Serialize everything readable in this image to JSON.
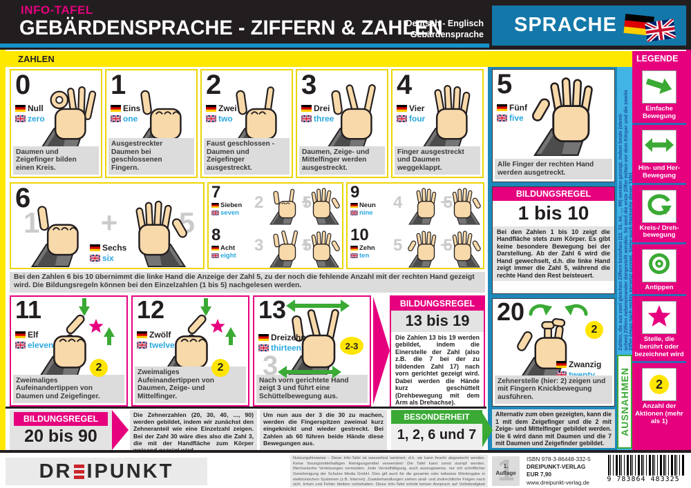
{
  "colors": {
    "magenta": "#E6007E",
    "yellow": "#FFE800",
    "blue_panel": "#1F88BB",
    "sprache_blue": "#1378A9",
    "cyan_strip": "#41B3E5",
    "green": "#3AAA35",
    "english_blue": "#29A7DE",
    "header_dark": "#221E20"
  },
  "header": {
    "tag": "INFO-TAFEL",
    "title": "GEBÄRDENSPRACHE - ZIFFERN & ZAHLEN",
    "lang_line1": "Deutsch - Englisch",
    "lang_line2": "Gebärdensprache",
    "language_panel": "SPRACHE"
  },
  "section": {
    "zahlen": "ZAHLEN"
  },
  "cards": {
    "c0": {
      "digit": "0",
      "de": "Null",
      "en": "zero",
      "caption": "Daumen und Zeigefinger bilden einen Kreis."
    },
    "c1": {
      "digit": "1",
      "de": "Eins",
      "en": "one",
      "caption": "Ausgestreckter Daumen bei geschlossenen Fingern."
    },
    "c2": {
      "digit": "2",
      "de": "Zwei",
      "en": "two",
      "caption": "Faust geschlossen - Daumen und Zeigefinger ausgestreckt."
    },
    "c3": {
      "digit": "3",
      "de": "Drei",
      "en": "three",
      "caption": "Daumen, Zeige- und Mittelfinger werden ausgestreckt."
    },
    "c4": {
      "digit": "4",
      "de": "Vier",
      "en": "four",
      "caption": "Finger ausgestreckt und Daumen weggeklappt."
    },
    "c5": {
      "digit": "5",
      "de": "Fünf",
      "en": "five",
      "caption": "Alle Finger der rechten Hand werden ausgetreckt."
    },
    "c6": {
      "digit": "6",
      "de": "Sechs",
      "en": "six",
      "ghost_a": "1",
      "ghost_plus": "+",
      "ghost_b": "5"
    },
    "c7": {
      "digit": "7",
      "de": "Sieben",
      "en": "seven",
      "ghost_a": "2",
      "ghost_plus": "+",
      "ghost_b": "5"
    },
    "c8": {
      "digit": "8",
      "de": "Acht",
      "en": "eight",
      "ghost_a": "3",
      "ghost_plus": "+",
      "ghost_b": "5"
    },
    "c9": {
      "digit": "9",
      "de": "Neun",
      "en": "nine",
      "ghost_a": "4",
      "ghost_plus": "+",
      "ghost_b": "5"
    },
    "c10": {
      "digit": "10",
      "de": "Zehn",
      "en": "ten",
      "ghost_a": "5",
      "ghost_plus": "+",
      "ghost_b": "5"
    },
    "c11": {
      "digit": "11",
      "de": "Elf",
      "en": "eleven",
      "badge": "2",
      "caption": "Zweimaliges Aufeinandertippen von Daumen und Zeigefinger."
    },
    "c12": {
      "digit": "12",
      "de": "Zwölf",
      "en": "twelve",
      "badge": "2",
      "caption": "Zweimaliges Aufeinandertippen von Daumen, Zeige- und Mittelfinger."
    },
    "c13": {
      "digit": "13",
      "de": "Dreizehn",
      "en": "thirteen",
      "badge": "2-3",
      "ghost": "3",
      "caption": "Nach vorn gerichtete Hand zeigt 3 und führt eine Schüttelbewegung aus."
    },
    "c20": {
      "digit": "20",
      "de": "Zwanzig",
      "en": "twenty",
      "badge": "2",
      "caption": "Zehnerstelle (hier: 2) zeigen und mit Fingern Knickbewegung ausführen."
    }
  },
  "notes": {
    "six_to_ten": "Bei den Zahlen 6 bis 10 übernimmt die linke Hand die Anzeige der Zahl 5, zu der noch die fehlende Anzahl mit der rechten Hand gezeigt wird. Die Bildungsregeln können bei den Einzelzahlen (1 bis 5) nachgelesen werden.",
    "alternative": "Alternativ zum oben gezeigten, kann die 1 mit dem Zeigefinger und die 2 mit Zeige- und Mittelfinger gebildet werden. Die 6 wird dann mit Daumen und die 7 mit Daumen und Zeigefinder gebildet."
  },
  "rules": {
    "r1_10": {
      "header": "BILDUNGSREGEL",
      "title": "1 bis 10",
      "body": "Bei den Zahlen 1 bis 10 zeigt die Handfläche stets zum Körper. Es gibt keine besondere Bewegung bei der Darstellung. Ab der Zahl 6 wird die Hand gewechselt, d.h. die linke Hand zeigt immer die Zahl 5, während die rechte Hand den Rest beisteuert."
    },
    "r13_19": {
      "header": "BILDUNGSREGEL",
      "title": "13 bis 19",
      "body": "Die Zahlen 13 bis 19 werden gebildet, indem die Einerstelle der Zahl (also z.B. die 7 bei der zu bildenden Zahl 17) nach vorn gerichtet gezeigt wird. Dabei werden die Hände kurz geschüttelt (Drehbewegung mit dem Arm als Drehachse)."
    },
    "r20_90": {
      "header": "BILDUNGSREGEL",
      "title": "20 bis 90",
      "body1": "Die Zehnerzahlen (20, 30, 40, ..., 90) werden gebildet, indem wir zunächst den Zehneranteil wie eine Einzelzahl zeigen. Bei der Zahl 30 wäre dies also die Zahl 3, die mit der Handfläche zum Körper weisend gezeigt wird.",
      "body2": "Um nun aus der 3 die 30 zu machen, werden die Fingerspitzen zweimal kurz eingeknickt und wieder gestreckt. Bei Zahlen ab 60 führen beide Hände diese Bewegungen aus."
    },
    "besonderheit": {
      "header": "BESONDERHEIT",
      "title": "1, 2, 6 und 7"
    }
  },
  "ausnahmen": {
    "label": "AUSNAHMEN",
    "line1": "Zahlen, die aus zwei gleichen Ziffern bestehen (22, 33, 44, ..., 99) werden gezeigt, indem beide (identi-",
    "line2": "schen) Ziffern nebeneinander dargestellt werden. So wird die erste Ziffer mitten vor dem Körper und die zweite",
    "line3": "Ziffer etwas nach rechts versetzt gezeigt. Siehe auch Rückseite dieser Tafel."
  },
  "legend": {
    "header": "LEGENDE",
    "items": [
      {
        "icon": "single-arrow-icon",
        "label": "Einfache Bewegung"
      },
      {
        "icon": "double-arrow-icon",
        "label": "Hin- und Her- Bewegung"
      },
      {
        "icon": "rotate-arrow-icon",
        "label": "Kreis-/ Dreh- bewegung"
      },
      {
        "icon": "target-icon",
        "label": "Antippen"
      },
      {
        "icon": "star-icon",
        "label": "Stelle, die berührt oder bezeichnet wird"
      },
      {
        "icon": "count-badge-icon",
        "label": "Anzahl der Aktionen (mehr als 1)",
        "badge": "2"
      }
    ]
  },
  "footer": {
    "logo_prefix": "DR",
    "logo_suffix": "IPUNKT",
    "legal": "Nutzungshinweise - Diese Info-Tafel ist wasserfest laminiert, d.h. sie kann feucht abgewischt werden. Keine lösungsmittelhaltigen Reinigungsmittel verwenden! Die Tafel kann sonst stumpf werden. Mechanische Verletzungen vermeiden. Jede Vervielfältigung, auch auszugsweise, nur mit schriftlicher Genehmigung der Schulze Media GmbH. Dies gilt auch für die gesamte oder teilweise Wiedergabe in elektronischen Systemen (z.B. Internet). Zuwiderhandlungen ziehen straf- und zivilrechtliche Folgen nach sich. Irrtum und Fehler bleiben vorbehalten. Diese Info-Tafel erhebt keinen Anspruch auf Vollständigkeit und zeigt eine der möglichen Gebärden. © DREIPUNKT-VERLAG, Schulze Media GmbH",
    "auflage_ghost": "1",
    "auflage_line1": "1.",
    "auflage_line2": "Auflage",
    "isbn": "ISBN  978-3-86448-332-5",
    "publisher": "DREIPUNKT-VERLAG",
    "price": "EUR 7,90",
    "url": "www.dreipunkt-verlag.de",
    "barcode_digits": "9 783864 483325"
  }
}
